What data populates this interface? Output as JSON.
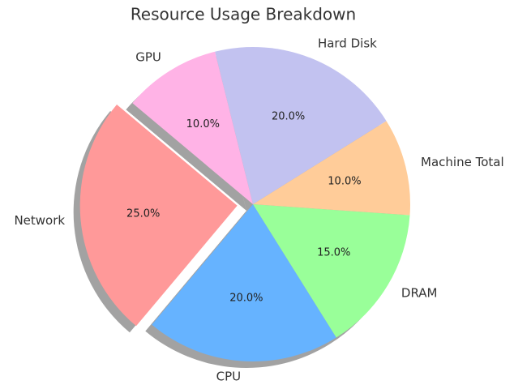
{
  "chart_data": {
    "type": "pie",
    "title": "Resource Usage Breakdown",
    "categories": [
      "Network",
      "CPU",
      "DRAM",
      "Machine Total",
      "Hard Disk",
      "GPU"
    ],
    "values": [
      25,
      20,
      15,
      10,
      20,
      10
    ],
    "value_labels": [
      "25.0%",
      "20.0%",
      "15.0%",
      "10.0%",
      "20.0%",
      "10.0%"
    ],
    "colors": [
      "#ff9999",
      "#66b3ff",
      "#99ff99",
      "#ffcc99",
      "#c2c2f0",
      "#ffb3e6"
    ],
    "startangle": 140,
    "explode": [
      0.1,
      0,
      0,
      0,
      0,
      0
    ],
    "shadow": true
  }
}
